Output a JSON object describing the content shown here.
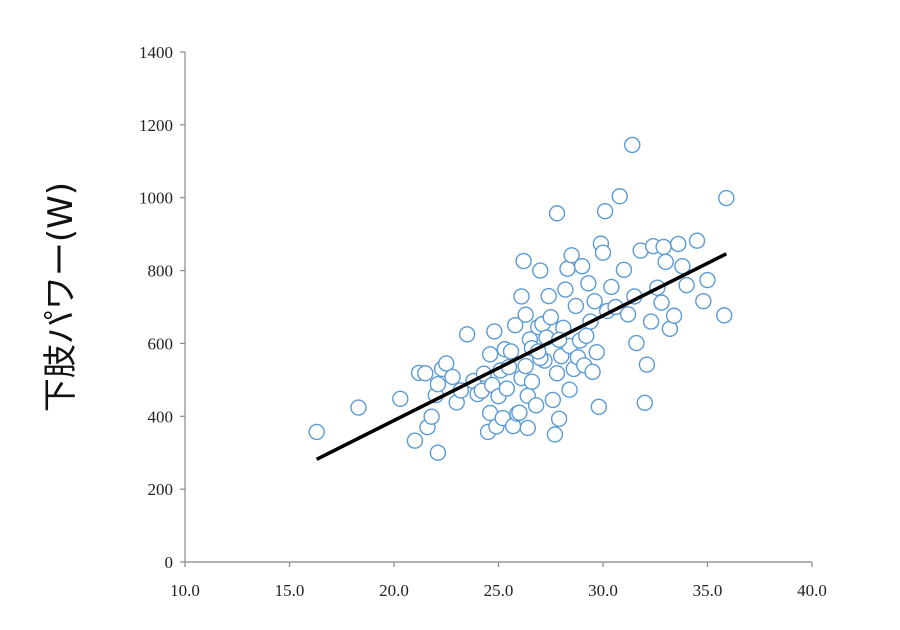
{
  "chart_data": {
    "type": "scatter",
    "title": "",
    "xlabel": "",
    "ylabel": "下肢パワー(W)",
    "xlim": [
      10,
      40
    ],
    "ylim": [
      0,
      1400
    ],
    "x_ticks": [
      "10.0",
      "15.0",
      "20.0",
      "25.0",
      "30.0",
      "35.0",
      "40.0"
    ],
    "y_ticks": [
      "0",
      "200",
      "400",
      "600",
      "800",
      "1000",
      "1200",
      "1400"
    ],
    "grid": false,
    "legend": "none",
    "marker_color": "#5b9bd5",
    "trendline_color": "#000000",
    "trendline": {
      "x": [
        16.3,
        35.9
      ],
      "y": [
        282,
        846
      ]
    },
    "points": [
      [
        16.3,
        357
      ],
      [
        18.3,
        424
      ],
      [
        20.3,
        448
      ],
      [
        21.0,
        333
      ],
      [
        21.2,
        519
      ],
      [
        21.5,
        518
      ],
      [
        21.6,
        370
      ],
      [
        21.8,
        399
      ],
      [
        22.0,
        458
      ],
      [
        22.1,
        488
      ],
      [
        22.1,
        300
      ],
      [
        22.3,
        530
      ],
      [
        22.5,
        545
      ],
      [
        22.8,
        508
      ],
      [
        23.0,
        438
      ],
      [
        23.2,
        471
      ],
      [
        23.5,
        625
      ],
      [
        23.8,
        497
      ],
      [
        24.0,
        461
      ],
      [
        24.2,
        470
      ],
      [
        24.3,
        517
      ],
      [
        24.5,
        357
      ],
      [
        24.6,
        409
      ],
      [
        24.6,
        570
      ],
      [
        24.7,
        486
      ],
      [
        24.8,
        633
      ],
      [
        24.9,
        372
      ],
      [
        25.0,
        455
      ],
      [
        25.1,
        526
      ],
      [
        25.2,
        395
      ],
      [
        25.3,
        584
      ],
      [
        25.4,
        476
      ],
      [
        25.5,
        535
      ],
      [
        25.6,
        578
      ],
      [
        25.7,
        373
      ],
      [
        25.8,
        650
      ],
      [
        25.9,
        407
      ],
      [
        26.0,
        410
      ],
      [
        26.1,
        729
      ],
      [
        26.1,
        505
      ],
      [
        26.2,
        826
      ],
      [
        26.3,
        679
      ],
      [
        26.4,
        456
      ],
      [
        26.4,
        368
      ],
      [
        26.5,
        611
      ],
      [
        26.6,
        587
      ],
      [
        26.6,
        495
      ],
      [
        26.8,
        430
      ],
      [
        26.9,
        645
      ],
      [
        27.0,
        800
      ],
      [
        27.1,
        653
      ],
      [
        27.2,
        553
      ],
      [
        27.3,
        616
      ],
      [
        27.4,
        730
      ],
      [
        27.5,
        672
      ],
      [
        27.6,
        445
      ],
      [
        27.7,
        350
      ],
      [
        27.8,
        957
      ],
      [
        27.8,
        518
      ],
      [
        27.9,
        393
      ],
      [
        28.0,
        565
      ],
      [
        28.1,
        643
      ],
      [
        28.2,
        748
      ],
      [
        28.3,
        805
      ],
      [
        28.4,
        593
      ],
      [
        28.4,
        473
      ],
      [
        28.5,
        842
      ],
      [
        28.6,
        530
      ],
      [
        28.7,
        703
      ],
      [
        28.8,
        562
      ],
      [
        28.9,
        608
      ],
      [
        29.0,
        812
      ],
      [
        29.1,
        540
      ],
      [
        29.2,
        621
      ],
      [
        29.3,
        765
      ],
      [
        29.4,
        660
      ],
      [
        29.5,
        522
      ],
      [
        29.6,
        716
      ],
      [
        29.7,
        576
      ],
      [
        29.8,
        426
      ],
      [
        29.9,
        874
      ],
      [
        30.0,
        849
      ],
      [
        30.1,
        963
      ],
      [
        30.2,
        689
      ],
      [
        30.4,
        755
      ],
      [
        30.6,
        700
      ],
      [
        30.8,
        1004
      ],
      [
        31.0,
        802
      ],
      [
        31.2,
        680
      ],
      [
        31.4,
        1145
      ],
      [
        31.5,
        729
      ],
      [
        31.6,
        601
      ],
      [
        31.8,
        855
      ],
      [
        32.0,
        437
      ],
      [
        32.1,
        542
      ],
      [
        32.3,
        660
      ],
      [
        32.4,
        867
      ],
      [
        32.6,
        753
      ],
      [
        32.8,
        712
      ],
      [
        32.9,
        865
      ],
      [
        33.0,
        824
      ],
      [
        33.2,
        640
      ],
      [
        33.4,
        676
      ],
      [
        33.6,
        873
      ],
      [
        33.8,
        812
      ],
      [
        34.0,
        760
      ],
      [
        34.5,
        882
      ],
      [
        34.8,
        716
      ],
      [
        35.0,
        774
      ],
      [
        35.8,
        677
      ],
      [
        35.9,
        999
      ],
      [
        27.0,
        560
      ],
      [
        27.9,
        610
      ],
      [
        26.9,
        578
      ],
      [
        26.3,
        538
      ]
    ]
  }
}
